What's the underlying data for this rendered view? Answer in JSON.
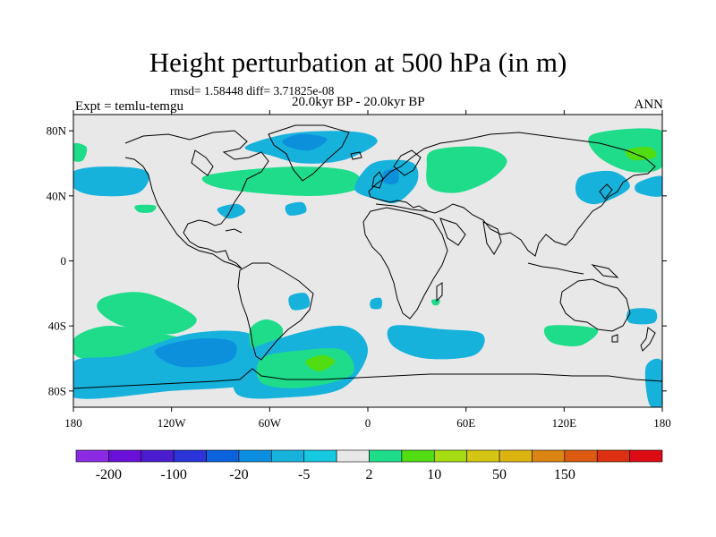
{
  "title": "Height perturbation at 500 hPa (in m)",
  "stats": "rmsd= 1.58448 diff= 3.71825e-08",
  "left_string": "Expt = temlu-temgu",
  "center_string": "20.0kyr BP - 20.0kyr BP",
  "right_string": "ANN",
  "map": {
    "projection": "cylindrical equidistant",
    "lon_range": [
      -180,
      180
    ],
    "lat_range": [
      -90,
      90
    ],
    "background_color": "#e8e8e8",
    "x_ticks": [
      {
        "lon": -180,
        "label": "180"
      },
      {
        "lon": -120,
        "label": "120W"
      },
      {
        "lon": -60,
        "label": "60W"
      },
      {
        "lon": 0,
        "label": "0"
      },
      {
        "lon": 60,
        "label": "60E"
      },
      {
        "lon": 120,
        "label": "120E"
      },
      {
        "lon": 180,
        "label": "180"
      }
    ],
    "y_ticks": [
      {
        "lat": 80,
        "label": "80N"
      },
      {
        "lat": 40,
        "label": "40N"
      },
      {
        "lat": 0,
        "label": "0"
      },
      {
        "lat": -40,
        "label": "40S"
      },
      {
        "lat": -80,
        "label": "80S"
      }
    ],
    "features": [
      {
        "name": "north-atlantic-greenland-blue",
        "color": "#16b2dc",
        "lonlat": [
          [
            -75,
            70
          ],
          [
            -50,
            78
          ],
          [
            -20,
            80
          ],
          [
            0,
            78
          ],
          [
            5,
            72
          ],
          [
            -15,
            62
          ],
          [
            -40,
            60
          ],
          [
            -60,
            65
          ]
        ]
      },
      {
        "name": "greenland-core",
        "color": "#0c90dc",
        "lonlat": [
          [
            -52,
            74
          ],
          [
            -40,
            78
          ],
          [
            -25,
            75
          ],
          [
            -35,
            68
          ],
          [
            -48,
            70
          ]
        ]
      },
      {
        "name": "north-atlantic-green",
        "color": "#1fdc8a",
        "lonlat": [
          [
            -100,
            52
          ],
          [
            -75,
            56
          ],
          [
            -40,
            58
          ],
          [
            -10,
            55
          ],
          [
            -5,
            45
          ],
          [
            -30,
            40
          ],
          [
            -70,
            42
          ],
          [
            -95,
            46
          ]
        ]
      },
      {
        "name": "europe-blue",
        "color": "#16b2dc",
        "lonlat": [
          [
            0,
            58
          ],
          [
            12,
            62
          ],
          [
            28,
            60
          ],
          [
            30,
            48
          ],
          [
            18,
            36
          ],
          [
            5,
            38
          ],
          [
            -8,
            44
          ]
        ]
      },
      {
        "name": "europe-core",
        "color": "#0c90dc",
        "lonlat": [
          [
            10,
            55
          ],
          [
            18,
            56
          ],
          [
            18,
            48
          ],
          [
            10,
            48
          ]
        ]
      },
      {
        "name": "russia-green",
        "color": "#1fdc8a",
        "lonlat": [
          [
            40,
            68
          ],
          [
            70,
            70
          ],
          [
            85,
            62
          ],
          [
            75,
            50
          ],
          [
            55,
            42
          ],
          [
            38,
            45
          ],
          [
            36,
            58
          ]
        ]
      },
      {
        "name": "pacific-nw-blue",
        "color": "#16b2dc",
        "lonlat": [
          [
            -180,
            55
          ],
          [
            -160,
            58
          ],
          [
            -135,
            55
          ],
          [
            -140,
            42
          ],
          [
            -165,
            40
          ],
          [
            -180,
            45
          ]
        ]
      },
      {
        "name": "pacific-nw-green",
        "color": "#1fdc8a",
        "lonlat": [
          [
            -180,
            72
          ],
          [
            -172,
            70
          ],
          [
            -174,
            62
          ],
          [
            -180,
            62
          ]
        ]
      },
      {
        "name": "gulf-blue",
        "color": "#16b2dc",
        "lonlat": [
          [
            -92,
            32
          ],
          [
            -80,
            35
          ],
          [
            -75,
            30
          ],
          [
            -85,
            26
          ]
        ]
      },
      {
        "name": "atlantic-small-blue",
        "color": "#16b2dc",
        "lonlat": [
          [
            -50,
            34
          ],
          [
            -40,
            36
          ],
          [
            -38,
            30
          ],
          [
            -48,
            28
          ]
        ]
      },
      {
        "name": "pacific-small-green",
        "color": "#1fdc8a",
        "lonlat": [
          [
            -142,
            34
          ],
          [
            -130,
            34
          ],
          [
            -132,
            30
          ],
          [
            -140,
            30
          ]
        ]
      },
      {
        "name": "east-asia-blue",
        "color": "#16b2dc",
        "lonlat": [
          [
            130,
            52
          ],
          [
            150,
            55
          ],
          [
            160,
            45
          ],
          [
            140,
            35
          ],
          [
            128,
            40
          ]
        ]
      },
      {
        "name": "nw-pacific-green",
        "color": "#1fdc8a",
        "lonlat": [
          [
            138,
            78
          ],
          [
            180,
            80
          ],
          [
            180,
            58
          ],
          [
            160,
            55
          ],
          [
            140,
            65
          ]
        ]
      },
      {
        "name": "nw-pacific-lime",
        "color": "#52dc12",
        "lonlat": [
          [
            158,
            68
          ],
          [
            172,
            70
          ],
          [
            176,
            64
          ],
          [
            162,
            62
          ]
        ]
      },
      {
        "name": "east-pacific-blue",
        "color": "#16b2dc",
        "lonlat": [
          [
            165,
            48
          ],
          [
            180,
            52
          ],
          [
            180,
            40
          ],
          [
            165,
            42
          ]
        ]
      },
      {
        "name": "south-pacific-green",
        "color": "#1fdc8a",
        "lonlat": [
          [
            -160,
            -22
          ],
          [
            -135,
            -20
          ],
          [
            -105,
            -35
          ],
          [
            -120,
            -45
          ],
          [
            -150,
            -40
          ],
          [
            -165,
            -30
          ]
        ]
      },
      {
        "name": "south-pacific-green-2",
        "color": "#1fdc8a",
        "lonlat": [
          [
            -180,
            -48
          ],
          [
            -160,
            -40
          ],
          [
            -130,
            -44
          ],
          [
            -110,
            -50
          ],
          [
            -140,
            -58
          ],
          [
            -175,
            -60
          ]
        ]
      },
      {
        "name": "southern-ocean-blue",
        "color": "#16b2dc",
        "lonlat": [
          [
            -180,
            -62
          ],
          [
            -150,
            -58
          ],
          [
            -110,
            -45
          ],
          [
            -75,
            -44
          ],
          [
            -65,
            -55
          ],
          [
            -70,
            -75
          ],
          [
            -120,
            -80
          ],
          [
            -180,
            -84
          ]
        ]
      },
      {
        "name": "southern-ocean-core",
        "color": "#0c90dc",
        "lonlat": [
          [
            -130,
            -55
          ],
          [
            -105,
            -48
          ],
          [
            -82,
            -50
          ],
          [
            -85,
            -62
          ],
          [
            -115,
            -65
          ]
        ]
      },
      {
        "name": "patagonia-green",
        "color": "#1fdc8a",
        "lonlat": [
          [
            -72,
            -42
          ],
          [
            -62,
            -36
          ],
          [
            -52,
            -42
          ],
          [
            -58,
            -55
          ],
          [
            -70,
            -55
          ]
        ]
      },
      {
        "name": "south-atlantic-blue",
        "color": "#16b2dc",
        "lonlat": [
          [
            -78,
            -60
          ],
          [
            -55,
            -48
          ],
          [
            -15,
            -40
          ],
          [
            0,
            -55
          ],
          [
            -15,
            -78
          ],
          [
            -50,
            -84
          ],
          [
            -80,
            -82
          ]
        ]
      },
      {
        "name": "south-atlantic-green",
        "color": "#1fdc8a",
        "lonlat": [
          [
            -65,
            -60
          ],
          [
            -40,
            -55
          ],
          [
            -15,
            -55
          ],
          [
            -10,
            -70
          ],
          [
            -40,
            -78
          ],
          [
            -65,
            -75
          ]
        ]
      },
      {
        "name": "south-atlantic-lime",
        "color": "#52dc12",
        "lonlat": [
          [
            -38,
            -62
          ],
          [
            -28,
            -58
          ],
          [
            -20,
            -62
          ],
          [
            -30,
            -68
          ]
        ]
      },
      {
        "name": "south-indian-blue",
        "color": "#16b2dc",
        "lonlat": [
          [
            15,
            -40
          ],
          [
            45,
            -42
          ],
          [
            70,
            -45
          ],
          [
            65,
            -58
          ],
          [
            35,
            -60
          ],
          [
            15,
            -52
          ]
        ]
      },
      {
        "name": "south-indian-small-blue",
        "color": "#16b2dc",
        "lonlat": [
          [
            2,
            -24
          ],
          [
            8,
            -23
          ],
          [
            8,
            -29
          ],
          [
            2,
            -29
          ]
        ]
      },
      {
        "name": "south-indian-small-green",
        "color": "#1fdc8a",
        "lonlat": [
          [
            39,
            -24
          ],
          [
            44,
            -24
          ],
          [
            43,
            -27
          ],
          [
            40,
            -27
          ]
        ]
      },
      {
        "name": "south-indian-green",
        "color": "#1fdc8a",
        "lonlat": [
          [
            110,
            -40
          ],
          [
            140,
            -42
          ],
          [
            130,
            -52
          ],
          [
            112,
            -50
          ]
        ]
      },
      {
        "name": "tasman-blue",
        "color": "#16b2dc",
        "lonlat": [
          [
            160,
            -30
          ],
          [
            175,
            -30
          ],
          [
            175,
            -38
          ],
          [
            160,
            -38
          ]
        ]
      },
      {
        "name": "antarctic-edge-blue",
        "color": "#16b2dc",
        "lonlat": [
          [
            170,
            -65
          ],
          [
            180,
            -62
          ],
          [
            180,
            -88
          ],
          [
            172,
            -88
          ]
        ]
      },
      {
        "name": "brazil-blue",
        "color": "#16b2dc",
        "lonlat": [
          [
            -48,
            -22
          ],
          [
            -38,
            -20
          ],
          [
            -36,
            -28
          ],
          [
            -46,
            -30
          ]
        ]
      }
    ]
  },
  "colorbar": {
    "colors": [
      "#8a2be2",
      "#6b10d8",
      "#4a1ed0",
      "#2a34d8",
      "#0a62dc",
      "#0a8ee0",
      "#16b2dc",
      "#16c8e0",
      "#e8e8e8",
      "#1fdc8a",
      "#52dc12",
      "#a6dc12",
      "#d4c612",
      "#dcb412",
      "#dc8412",
      "#dc5a12",
      "#dc3012",
      "#dc0c12"
    ],
    "labels": [
      {
        "boundary": 1,
        "text": "-200"
      },
      {
        "boundary": 3,
        "text": "-100"
      },
      {
        "boundary": 5,
        "text": "-20"
      },
      {
        "boundary": 7,
        "text": "-5"
      },
      {
        "boundary": 9,
        "text": "2"
      },
      {
        "boundary": 11,
        "text": "10"
      },
      {
        "boundary": 13,
        "text": "50"
      },
      {
        "boundary": 15,
        "text": "150"
      }
    ]
  }
}
